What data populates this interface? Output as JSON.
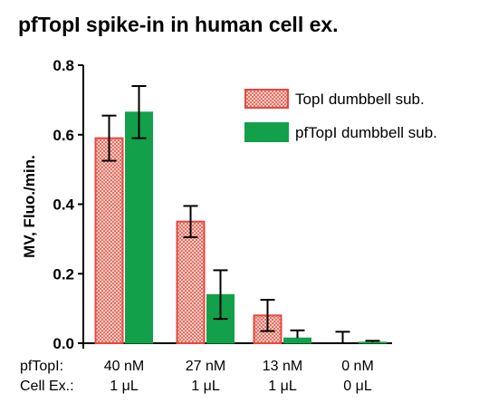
{
  "chart_data": {
    "type": "bar",
    "title": "pfTopI spike-in in human cell ex.",
    "ylabel": "MV, Fluo./min.",
    "ylim": [
      0,
      0.8
    ],
    "yticks": [
      "0.0",
      "0.2",
      "0.4",
      "0.6",
      "0.8"
    ],
    "categories": [
      "40 nM",
      "27 nM",
      "13 nM",
      "0 nM"
    ],
    "condition_rows": [
      {
        "label": "pfTopI:",
        "values": [
          "40 nM",
          "27 nM",
          "13 nM",
          "0 nM"
        ]
      },
      {
        "label": "Cell Ex.:",
        "values": [
          "1 μL",
          "1 μL",
          "1 μL",
          "0 μL"
        ]
      }
    ],
    "series": [
      {
        "name": "TopI dumbbell sub.",
        "color": "#e8473f",
        "pattern": "checkered",
        "values": [
          0.59,
          0.35,
          0.08,
          0.0
        ],
        "errors": [
          0.065,
          0.045,
          0.045,
          0.033
        ]
      },
      {
        "name": "pfTopI dumbbell sub.",
        "color": "#13a04a",
        "pattern": "solid",
        "values": [
          0.665,
          0.14,
          0.015,
          0.003
        ],
        "errors": [
          0.075,
          0.07,
          0.022,
          0.004
        ]
      }
    ],
    "legend_position": "top-right",
    "grid": false,
    "error_bars": true
  }
}
